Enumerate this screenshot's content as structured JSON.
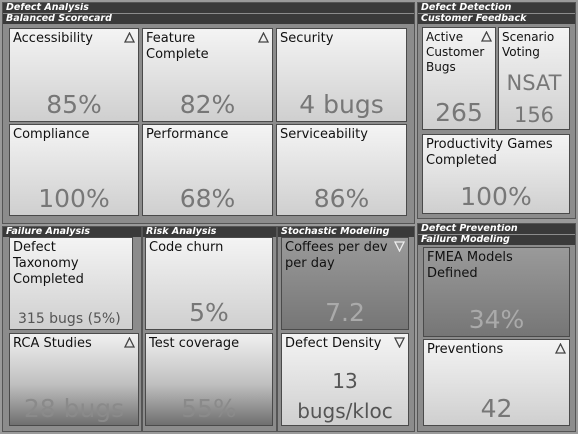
{
  "sections": {
    "defect_analysis": "Defect Analysis",
    "balanced_scorecard": "Balanced Scorecard",
    "defect_detection": "Defect Detection",
    "customer_feedback": "Customer Feedback",
    "failure_analysis": "Failure Analysis",
    "risk_analysis": "Risk Analysis",
    "stochastic_modeling": "Stochastic Modeling",
    "defect_prevention": "Defect Prevention",
    "failure_modeling": "Failure Modeling"
  },
  "tiles": {
    "accessibility": {
      "label": "Accessibility",
      "value": "85%",
      "trend": "up"
    },
    "feature_complete": {
      "label": "Feature Complete",
      "value": "82%",
      "trend": "up"
    },
    "security": {
      "label": "Security",
      "value": "4 bugs"
    },
    "compliance": {
      "label": "Compliance",
      "value": "100%"
    },
    "performance": {
      "label": "Performance",
      "value": "68%"
    },
    "serviceability": {
      "label": "Serviceability",
      "value": "86%"
    },
    "active_bugs": {
      "label": "Active Customer Bugs",
      "value": "265",
      "trend": "up"
    },
    "scenario_voting": {
      "label": "Scenario Voting",
      "value_line1": "NSAT",
      "value_line2": "156"
    },
    "productivity_games": {
      "label": "Productivity Games Completed",
      "value": "100%"
    },
    "defect_taxonomy": {
      "label": "Defect Taxonomy Completed",
      "value": "315 bugs (5%)"
    },
    "code_churn": {
      "label": "Code churn",
      "value": "5%"
    },
    "coffees": {
      "label": "Coffees per dev per day",
      "value": "7.2",
      "trend": "down"
    },
    "rca_studies": {
      "label": "RCA Studies",
      "value": "28 bugs",
      "trend": "up"
    },
    "test_coverage": {
      "label": "Test coverage",
      "value": "55%"
    },
    "defect_density": {
      "label": "Defect Density",
      "value_line1": "13",
      "value_line2": "bugs/kloc",
      "trend": "down"
    },
    "fmea_models": {
      "label": "FMEA Models Defined",
      "value": "34%"
    },
    "preventions": {
      "label": "Preventions",
      "value": "42",
      "trend": "up"
    }
  },
  "icons": {
    "trend_up": "triangle-up-icon",
    "trend_down": "triangle-down-icon"
  }
}
